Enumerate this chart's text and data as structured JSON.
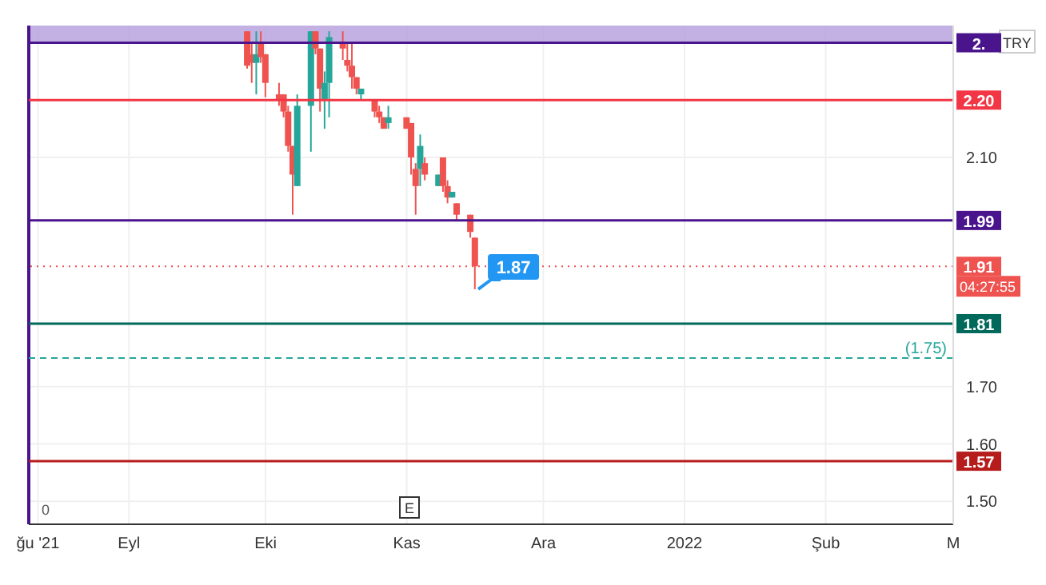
{
  "chart_data": {
    "type": "candlestick",
    "x": [
      "2021-09-27",
      "2021-09-28",
      "2021-09-29",
      "2021-09-30",
      "2021-10-01",
      "2021-10-04",
      "2021-10-05",
      "2021-10-06",
      "2021-10-07",
      "2021-10-08",
      "2021-10-11",
      "2021-10-12",
      "2021-10-13",
      "2021-10-14",
      "2021-10-15",
      "2021-10-18",
      "2021-10-19",
      "2021-10-20",
      "2021-10-21",
      "2021-10-22",
      "2021-10-25",
      "2021-10-26",
      "2021-10-27",
      "2021-10-28",
      "2021-11-01",
      "2021-11-02",
      "2021-11-03",
      "2021-11-04",
      "2021-11-05",
      "2021-11-08",
      "2021-11-09",
      "2021-11-10",
      "2021-11-11",
      "2021-11-12",
      "2021-11-15",
      "2021-11-16"
    ],
    "ohlc": [
      [
        2.32,
        2.32,
        2.255,
        2.26
      ],
      [
        2.28,
        2.3,
        2.23,
        2.265
      ],
      [
        2.265,
        2.32,
        2.21,
        2.28
      ],
      [
        2.3,
        2.32,
        2.265,
        2.275
      ],
      [
        2.28,
        2.28,
        2.205,
        2.23
      ],
      [
        2.21,
        2.23,
        2.19,
        2.2
      ],
      [
        2.21,
        2.21,
        2.17,
        2.18
      ],
      [
        2.18,
        2.19,
        2.11,
        2.12
      ],
      [
        2.12,
        2.12,
        2.0,
        2.07
      ],
      [
        2.05,
        2.21,
        2.05,
        2.19
      ],
      [
        2.19,
        2.32,
        2.11,
        2.32
      ],
      [
        2.32,
        2.32,
        2.28,
        2.29
      ],
      [
        2.29,
        2.29,
        2.18,
        2.22
      ],
      [
        2.2,
        2.25,
        2.15,
        2.23
      ],
      [
        2.23,
        2.32,
        2.17,
        2.31
      ],
      [
        2.3,
        2.32,
        2.27,
        2.29
      ],
      [
        2.27,
        2.3,
        2.25,
        2.26
      ],
      [
        2.26,
        2.3,
        2.22,
        2.24
      ],
      [
        2.24,
        2.24,
        2.21,
        2.22
      ],
      [
        2.21,
        2.22,
        2.2,
        2.22
      ],
      [
        2.2,
        2.2,
        2.17,
        2.18
      ],
      [
        2.18,
        2.19,
        2.16,
        2.17
      ],
      [
        2.17,
        2.17,
        2.15,
        2.15
      ],
      [
        2.16,
        2.19,
        2.15,
        2.17
      ],
      [
        2.17,
        2.17,
        2.15,
        2.15
      ],
      [
        2.16,
        2.16,
        2.07,
        2.1
      ],
      [
        2.08,
        2.09,
        2.0,
        2.05
      ],
      [
        2.08,
        2.14,
        2.05,
        2.12
      ],
      [
        2.09,
        2.1,
        2.06,
        2.07
      ],
      [
        2.05,
        2.07,
        2.05,
        2.07
      ],
      [
        2.1,
        2.1,
        2.04,
        2.05
      ],
      [
        2.05,
        2.06,
        2.02,
        2.03
      ],
      [
        2.03,
        2.04,
        2.03,
        2.04
      ],
      [
        2.02,
        2.02,
        1.99,
        2.0
      ],
      [
        2.0,
        2.0,
        1.96,
        1.97
      ],
      [
        1.96,
        1.96,
        1.87,
        1.91
      ]
    ],
    "colors": [
      "#ef5350",
      "#ef5350",
      "#26a69a",
      "#ef5350",
      "#ef5350",
      "#ef5350",
      "#ef5350",
      "#ef5350",
      "#ef5350",
      "#26a69a",
      "#26a69a",
      "#ef5350",
      "#ef5350",
      "#26a69a",
      "#26a69a",
      "#ef5350",
      "#ef5350",
      "#ef5350",
      "#ef5350",
      "#26a69a",
      "#ef5350",
      "#ef5350",
      "#ef5350",
      "#26a69a",
      "#ef5350",
      "#ef5350",
      "#ef5350",
      "#26a69a",
      "#ef5350",
      "#26a69a",
      "#ef5350",
      "#ef5350",
      "#26a69a",
      "#ef5350",
      "#ef5350",
      "#ef5350"
    ],
    "xlim": [
      "2021-08-10",
      "2022-03-01"
    ],
    "xticks": [
      {
        "value": "2021-08-12",
        "label": "ğu '21"
      },
      {
        "value": "2021-09-01",
        "label": "Eyl"
      },
      {
        "value": "2021-10-01",
        "label": "Eki"
      },
      {
        "value": "2021-11-01",
        "label": "Kas"
      },
      {
        "value": "2021-12-01",
        "label": "Ara"
      },
      {
        "value": "2022-01-01",
        "label": "2022"
      },
      {
        "value": "2022-02-01",
        "label": "Şub"
      },
      {
        "value": "2022-03-01",
        "label": "M"
      }
    ],
    "ylim": [
      1.46,
      2.33
    ],
    "yticks": [
      {
        "value": 1.5,
        "label": "1.50"
      },
      {
        "value": 1.6,
        "label": "1.60"
      },
      {
        "value": 1.7,
        "label": "1.70"
      },
      {
        "value": 2.1,
        "label": "2.10"
      }
    ],
    "grid": true,
    "ref_lines": [
      {
        "axis": "y",
        "value": 2.3,
        "label": "2.",
        "color": "#4a148c",
        "line_style": "solid"
      },
      {
        "axis": "y",
        "value": 2.2,
        "label": "2.20",
        "color": "#f23645",
        "line_style": "solid"
      },
      {
        "axis": "y",
        "value": 1.99,
        "label": "1.99",
        "color": "#4a148c",
        "line_style": "solid"
      },
      {
        "axis": "y",
        "value": 1.91,
        "label": "1.91",
        "color": "#ef5350",
        "line_style": "dotted"
      },
      {
        "axis": "y",
        "value": 1.81,
        "label": "1.81",
        "color": "#00695c",
        "line_style": "solid"
      },
      {
        "axis": "y",
        "value": 1.75,
        "label": "(1.75)",
        "color": "#26a69a",
        "line_style": "dashed"
      },
      {
        "axis": "y",
        "value": 1.57,
        "label": "1.57",
        "color": "#b71c1c",
        "line_style": "solid"
      }
    ],
    "bands": [
      {
        "axis": "y",
        "from": 2.3,
        "to": 2.33,
        "color": "#b39ddb"
      }
    ],
    "annotations": [
      "TRY",
      "04:27:55",
      "0",
      "E",
      {
        "text": "1.87",
        "x": "2021-11-16",
        "y": 1.87
      }
    ]
  }
}
